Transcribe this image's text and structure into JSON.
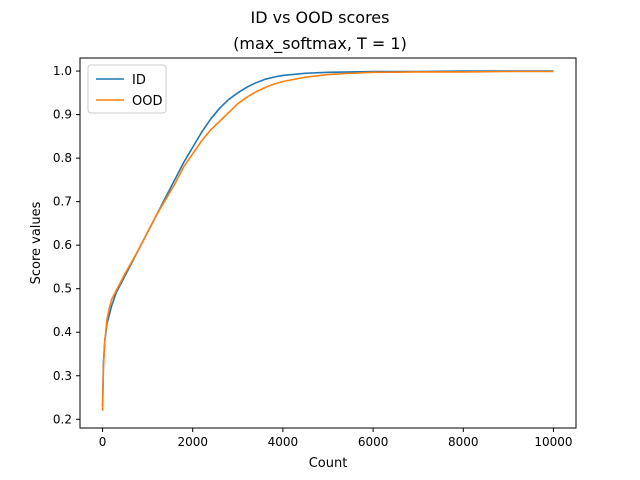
{
  "chart_data": {
    "type": "line",
    "title": "ID vs OOD scores",
    "subtitle": "(max_softmax, T = 1)",
    "xlabel": "Count",
    "ylabel": "Score values",
    "xlim": [
      -500,
      10500
    ],
    "ylim": [
      0.18,
      1.03
    ],
    "xticks": [
      0,
      2000,
      4000,
      6000,
      8000,
      10000
    ],
    "yticks": [
      0.2,
      0.3,
      0.4,
      0.5,
      0.6,
      0.7,
      0.8,
      0.9,
      1.0
    ],
    "xtick_labels": [
      "0",
      "2000",
      "4000",
      "6000",
      "8000",
      "10000"
    ],
    "ytick_labels": [
      "0.2",
      "0.3",
      "0.4",
      "0.5",
      "0.6",
      "0.7",
      "0.8",
      "0.9",
      "1.0"
    ],
    "grid": false,
    "legend_position": "top-left",
    "series": [
      {
        "name": "ID",
        "color": "#1f77b4",
        "x": [
          0,
          20,
          50,
          100,
          150,
          200,
          300,
          500,
          800,
          1000,
          1200,
          1400,
          1600,
          1800,
          2000,
          2200,
          2400,
          2600,
          2800,
          3000,
          3200,
          3400,
          3600,
          3800,
          4000,
          4500,
          5000,
          5500,
          6000,
          7000,
          8000,
          9000,
          10000
        ],
        "values": [
          0.23,
          0.33,
          0.38,
          0.42,
          0.44,
          0.46,
          0.49,
          0.53,
          0.59,
          0.63,
          0.67,
          0.71,
          0.75,
          0.79,
          0.825,
          0.86,
          0.89,
          0.915,
          0.935,
          0.95,
          0.963,
          0.973,
          0.981,
          0.986,
          0.99,
          0.995,
          0.997,
          0.998,
          0.999,
          0.999,
          1.0,
          1.0,
          1.0
        ]
      },
      {
        "name": "OOD",
        "color": "#ff7f0e",
        "x": [
          0,
          20,
          50,
          100,
          150,
          200,
          300,
          500,
          800,
          1000,
          1200,
          1400,
          1600,
          1800,
          2000,
          2200,
          2400,
          2600,
          2800,
          3000,
          3200,
          3400,
          3600,
          3800,
          4000,
          4500,
          5000,
          5500,
          6000,
          7000,
          8000,
          9000,
          10000
        ],
        "values": [
          0.22,
          0.32,
          0.38,
          0.43,
          0.455,
          0.475,
          0.495,
          0.535,
          0.59,
          0.63,
          0.67,
          0.705,
          0.74,
          0.78,
          0.81,
          0.84,
          0.865,
          0.885,
          0.905,
          0.925,
          0.94,
          0.952,
          0.962,
          0.97,
          0.976,
          0.986,
          0.992,
          0.995,
          0.997,
          0.998,
          0.998,
          0.999,
          0.999
        ]
      }
    ]
  }
}
